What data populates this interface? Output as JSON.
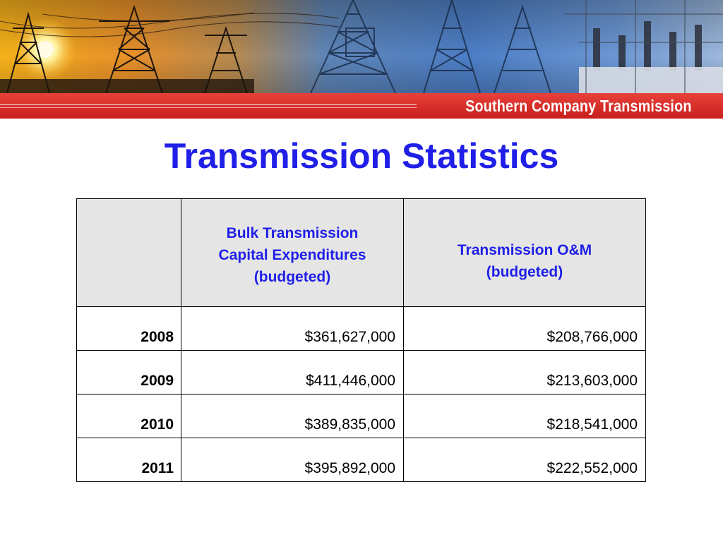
{
  "banner": {
    "brand": "Southern Company Transmission",
    "colors": {
      "red": "#d9292a",
      "sun": "#f5a623",
      "sky_blue": "#3f6fb8"
    }
  },
  "title": "Transmission Statistics",
  "table": {
    "columns": [
      {
        "lines": []
      },
      {
        "lines": [
          "Bulk Transmission",
          "Capital Expenditures",
          "(budgeted)"
        ]
      },
      {
        "lines": [
          "Transmission O&M",
          "(budgeted)"
        ]
      }
    ],
    "rows": [
      {
        "year": "2008",
        "capital": "$361,627,000",
        "om": "$208,766,000"
      },
      {
        "year": "2009",
        "capital": "$411,446,000",
        "om": "$213,603,000"
      },
      {
        "year": "2010",
        "capital": "$389,835,000",
        "om": "$218,541,000"
      },
      {
        "year": "2011",
        "capital": "$395,892,000",
        "om": "$222,552,000"
      }
    ]
  },
  "colors": {
    "title_blue": "#1f1fe8",
    "header_bg": "#e5e5e5"
  }
}
